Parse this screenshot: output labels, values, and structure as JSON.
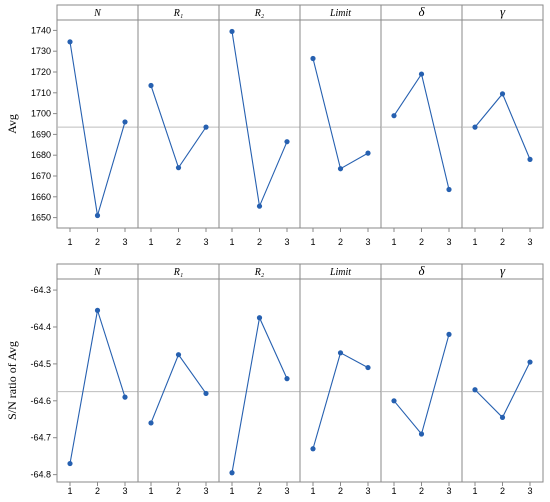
{
  "colors": {
    "series": "#2660b0",
    "reference": "#bdbdbd",
    "frame": "#8a8a8a",
    "header_bg": "#ffffff"
  },
  "chart_data": [
    {
      "type": "line",
      "ylabel": "Avg",
      "ylim": [
        1645,
        1745
      ],
      "yticks": [
        1650,
        1660,
        1670,
        1680,
        1690,
        1700,
        1710,
        1720,
        1730,
        1740
      ],
      "reference_line": 1693.5,
      "levels": [
        "1",
        "2",
        "3"
      ],
      "factors": [
        {
          "label": "N",
          "values": [
            1734.5,
            1651.0,
            1696.0
          ]
        },
        {
          "label": "R₁",
          "values": [
            1713.5,
            1674.0,
            1693.5
          ]
        },
        {
          "label": "R₂",
          "values": [
            1739.5,
            1655.5,
            1686.5
          ]
        },
        {
          "label": "Limit",
          "values": [
            1726.5,
            1673.5,
            1681.0
          ]
        },
        {
          "label": "δ",
          "values": [
            1699.0,
            1719.0,
            1663.5
          ]
        },
        {
          "label": "γ",
          "values": [
            1693.5,
            1709.5,
            1678.0
          ]
        }
      ]
    },
    {
      "type": "line",
      "ylabel": "S/N ratio of Avg",
      "ylim": [
        -64.82,
        -64.27
      ],
      "yticks": [
        -64.3,
        -64.4,
        -64.5,
        -64.6,
        -64.7,
        -64.8
      ],
      "reference_line": -64.575,
      "levels": [
        "1",
        "2",
        "3"
      ],
      "factors": [
        {
          "label": "N",
          "values": [
            -64.77,
            -64.355,
            -64.59
          ]
        },
        {
          "label": "R₁",
          "values": [
            -64.66,
            -64.475,
            -64.58
          ]
        },
        {
          "label": "R₂",
          "values": [
            -64.795,
            -64.375,
            -64.54
          ]
        },
        {
          "label": "Limit",
          "values": [
            -64.73,
            -64.47,
            -64.51
          ]
        },
        {
          "label": "δ",
          "values": [
            -64.6,
            -64.69,
            -64.42
          ]
        },
        {
          "label": "γ",
          "values": [
            -64.57,
            -64.645,
            -64.495
          ]
        }
      ]
    }
  ]
}
